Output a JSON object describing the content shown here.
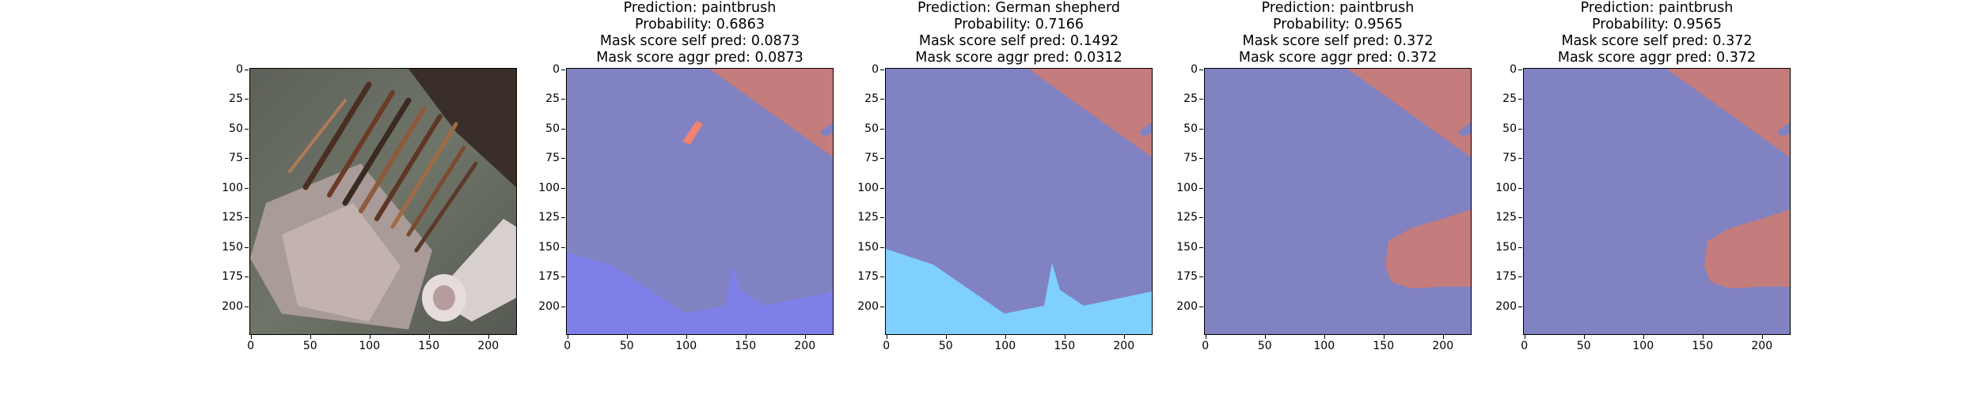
{
  "axes": {
    "y_ticks": [
      "0",
      "25",
      "50",
      "75",
      "100",
      "125",
      "150",
      "175",
      "200"
    ],
    "x_ticks": [
      "0",
      "50",
      "100",
      "150",
      "200"
    ]
  },
  "panels": [
    {
      "kind": "image",
      "lines": []
    },
    {
      "kind": "mask",
      "lines": [
        "Prediction: paintbrush",
        "Probability: 0.6863",
        "Mask score self pred: 0.0873",
        "Mask score aggr pred: 0.0873"
      ],
      "colors": {
        "base": "#8082c2",
        "corner": "#c47c7c",
        "bottom": "#7f7fe8",
        "blob": "#ef8270"
      }
    },
    {
      "kind": "mask",
      "lines": [
        "Prediction: German shepherd",
        "Probability: 0.7166",
        "Mask score self pred: 0.1492",
        "Mask score aggr pred: 0.0312"
      ],
      "colors": {
        "base": "#8082c2",
        "corner": "#c47c7c",
        "bottom": "#7fd0fe"
      }
    },
    {
      "kind": "mask",
      "lines": [
        "Prediction: paintbrush",
        "Probability: 0.9565",
        "Mask score self pred: 0.372",
        "Mask score aggr pred: 0.372"
      ],
      "colors": {
        "base": "#8082c2",
        "corner": "#c47c7c",
        "right": "#c47c7c"
      }
    },
    {
      "kind": "mask",
      "lines": [
        "Prediction: paintbrush",
        "Probability: 0.9565",
        "Mask score self pred: 0.372",
        "Mask score aggr pred: 0.372"
      ],
      "colors": {
        "base": "#8082c2",
        "corner": "#c47c7c",
        "right": "#c47c7c"
      }
    }
  ]
}
